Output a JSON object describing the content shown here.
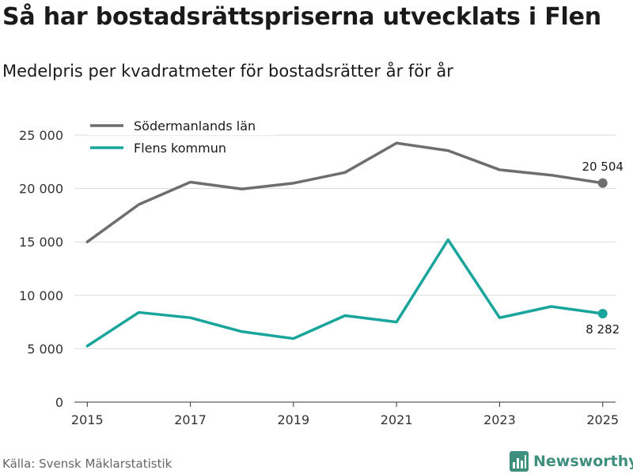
{
  "title": "Så har bostadsrättspriserna utvecklats i Flen",
  "subtitle": "Medelpris per kvadratmeter för bostadsrätter år för år",
  "source": "Källa: Svensk Mäklarstatistik",
  "brand": {
    "name": "Newsworthy",
    "icon": "newsworthy-logo-icon",
    "color": "#3f8f7f"
  },
  "chart_data": {
    "type": "line",
    "title": "Så har bostadsrättspriserna utvecklats i Flen",
    "subtitle": "Medelpris per kvadratmeter för bostadsrätter år för år",
    "xlabel": "",
    "ylabel": "",
    "x": [
      2015,
      2016,
      2017,
      2018,
      2019,
      2020,
      2021,
      2022,
      2023,
      2024,
      2025
    ],
    "xticks": [
      2015,
      2017,
      2019,
      2021,
      2023,
      2025
    ],
    "xtick_labels": [
      "2015",
      "2017",
      "2019",
      "2021",
      "2023",
      "2025"
    ],
    "xlim": [
      2014.75,
      2025.25
    ],
    "ylim": [
      0,
      25000
    ],
    "yticks": [
      0,
      5000,
      10000,
      15000,
      20000,
      25000
    ],
    "ytick_labels": [
      "0",
      "5 000",
      "10 000",
      "15 000",
      "20 000",
      "25 000"
    ],
    "grid": true,
    "legend_position": "top-left",
    "series": [
      {
        "name": "Södermanlands län",
        "color": "#6e6e6e",
        "values": [
          15000,
          18500,
          20600,
          19950,
          20500,
          21500,
          24250,
          23550,
          21750,
          21250,
          20504
        ],
        "end_label": "20 504",
        "end_label_position": "above"
      },
      {
        "name": "Flens kommun",
        "color": "#1aa59c",
        "values": [
          5250,
          8400,
          7900,
          6600,
          5950,
          8100,
          7500,
          15200,
          7900,
          8950,
          8282
        ],
        "end_label": "8 282",
        "end_label_position": "below"
      }
    ]
  }
}
